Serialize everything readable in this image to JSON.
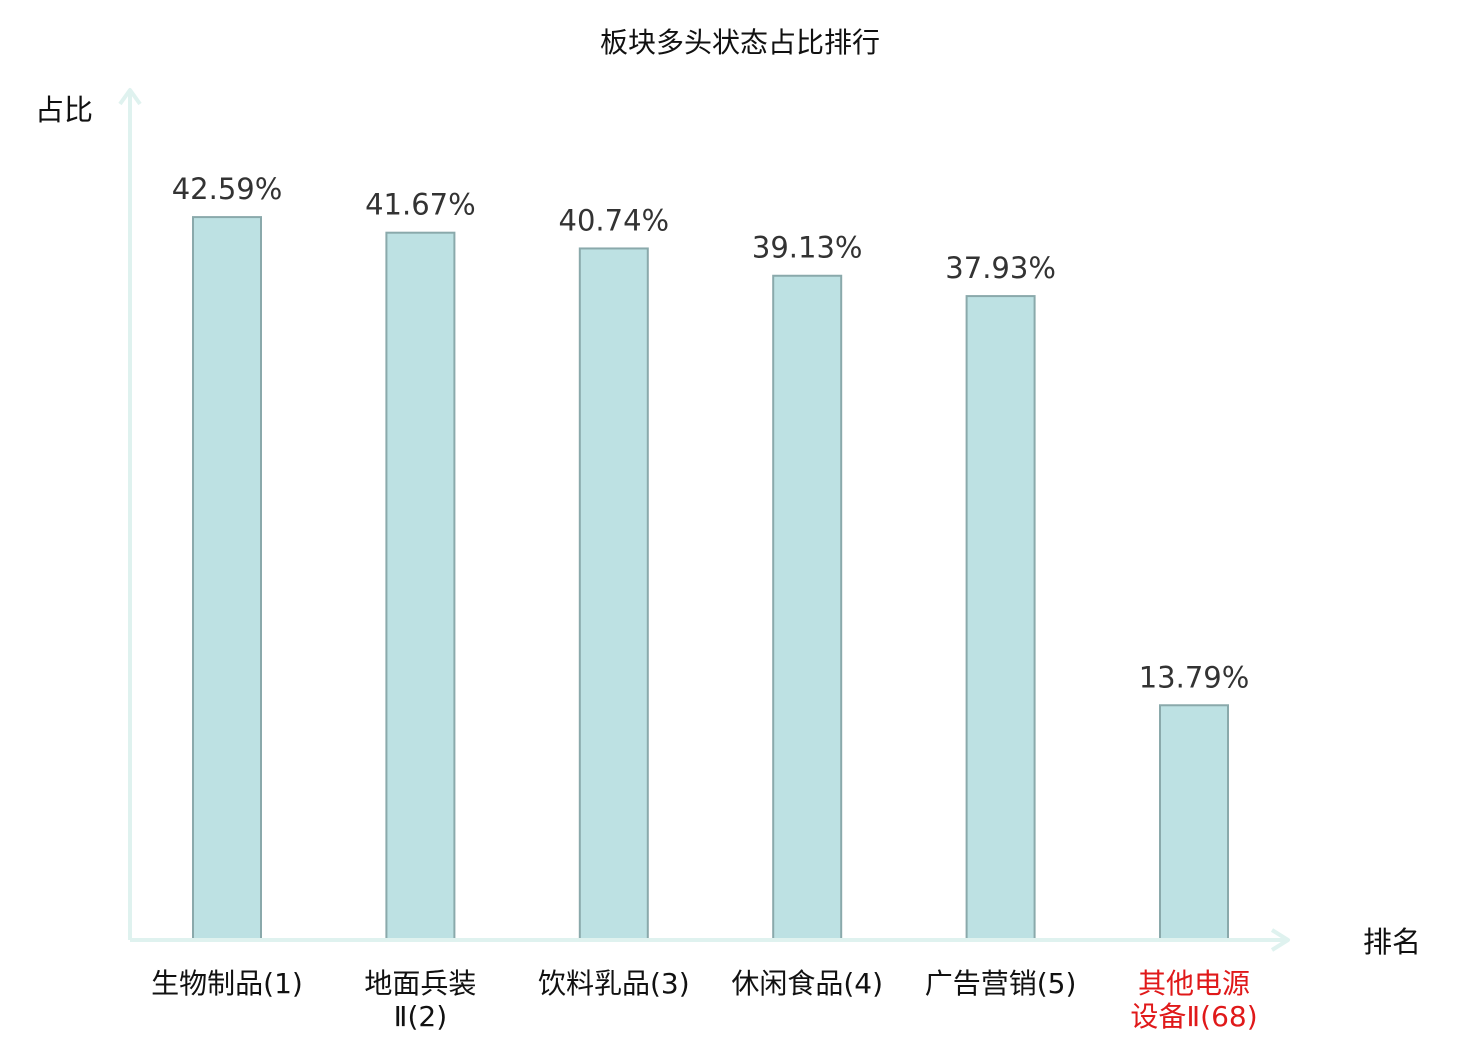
{
  "chart_data": {
    "type": "bar",
    "title": "板块多头状态占比排行",
    "xlabel": "排名",
    "ylabel": "占比",
    "ylim": [
      0,
      50
    ],
    "grid": false,
    "categories": [
      "生物制品(1)",
      "地面兵装Ⅱ(2)",
      "饮料乳品(3)",
      "休闲食品(4)",
      "广告营销(5)",
      "其他电源设备Ⅱ(68)"
    ],
    "category_lines": [
      [
        "生物制品(1)"
      ],
      [
        "地面兵装",
        "Ⅱ(2)"
      ],
      [
        "饮料乳品(3)"
      ],
      [
        "休闲食品(4)"
      ],
      [
        "广告营销(5)"
      ],
      [
        "其他电源",
        "设备Ⅱ(68)"
      ]
    ],
    "values": [
      42.59,
      41.67,
      40.74,
      39.13,
      37.93,
      13.79
    ],
    "value_labels": [
      "42.59%",
      "41.67%",
      "40.74%",
      "39.13%",
      "37.93%",
      "13.79%"
    ],
    "highlight_index": 5
  },
  "colors": {
    "bar_fill": "#bde1e3",
    "bar_stroke": "#8aa9ab",
    "axis": "#dff2ef",
    "text": "#111111",
    "value_text": "#333333",
    "highlight_text": "#e0191a"
  }
}
